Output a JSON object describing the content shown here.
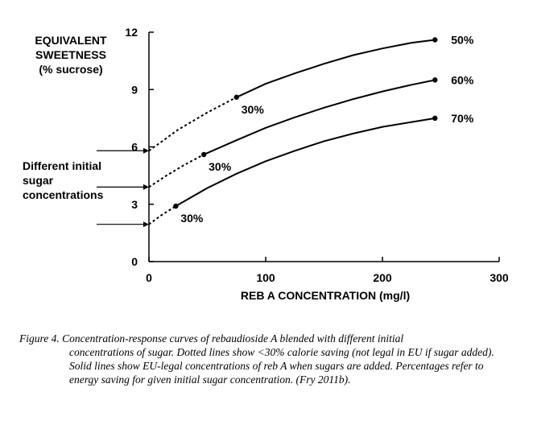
{
  "chart_data": {
    "type": "line",
    "ylabel_lines": [
      "EQUIVALENT",
      "SWEETNESS",
      "(% sucrose)"
    ],
    "xlabel": "REB A  CONCENTRATION (mg/l)",
    "xlim": [
      0,
      300
    ],
    "ylim": [
      0,
      12
    ],
    "x_ticks": [
      0,
      100,
      200,
      300
    ],
    "y_ticks": [
      0,
      3,
      6,
      9,
      12
    ],
    "grid": false,
    "left_annotation_lines": [
      "Different initial",
      "sugar",
      "concentrations"
    ],
    "series": [
      {
        "name": "50%",
        "initial_sugar": 5.8,
        "marker_30pct": {
          "x": 75,
          "y": 8.6,
          "label": "30%"
        },
        "end": {
          "x": 245,
          "y": 11.6
        },
        "dotted": [
          [
            0,
            5.8
          ],
          [
            25,
            6.9
          ],
          [
            50,
            7.8
          ],
          [
            75,
            8.6
          ]
        ],
        "solid": [
          [
            75,
            8.6
          ],
          [
            100,
            9.3
          ],
          [
            125,
            9.85
          ],
          [
            150,
            10.35
          ],
          [
            175,
            10.8
          ],
          [
            200,
            11.15
          ],
          [
            225,
            11.45
          ],
          [
            245,
            11.6
          ]
        ]
      },
      {
        "name": "60%",
        "initial_sugar": 3.9,
        "marker_30pct": {
          "x": 47,
          "y": 5.6,
          "label": "30%"
        },
        "end": {
          "x": 245,
          "y": 9.5
        },
        "dotted": [
          [
            0,
            3.9
          ],
          [
            15,
            4.5
          ],
          [
            30,
            5.05
          ],
          [
            47,
            5.6
          ]
        ],
        "solid": [
          [
            47,
            5.6
          ],
          [
            75,
            6.35
          ],
          [
            100,
            7.0
          ],
          [
            125,
            7.55
          ],
          [
            150,
            8.05
          ],
          [
            175,
            8.5
          ],
          [
            200,
            8.9
          ],
          [
            225,
            9.25
          ],
          [
            245,
            9.5
          ]
        ]
      },
      {
        "name": "70%",
        "initial_sugar": 1.95,
        "marker_30pct": {
          "x": 23,
          "y": 2.9,
          "label": "30%"
        },
        "end": {
          "x": 245,
          "y": 7.5
        },
        "dotted": [
          [
            0,
            1.95
          ],
          [
            10,
            2.4
          ],
          [
            23,
            2.9
          ]
        ],
        "solid": [
          [
            23,
            2.9
          ],
          [
            50,
            3.85
          ],
          [
            75,
            4.6
          ],
          [
            100,
            5.25
          ],
          [
            125,
            5.8
          ],
          [
            150,
            6.3
          ],
          [
            175,
            6.7
          ],
          [
            200,
            7.05
          ],
          [
            225,
            7.3
          ],
          [
            245,
            7.5
          ]
        ]
      }
    ]
  },
  "caption": {
    "first_line": "Figure 4. Concentration-response curves of rebaudioside A blended with different initial",
    "rest": "concentrations of sugar. Dotted lines show <30% calorie saving (not legal in EU if sugar added). Solid lines show EU-legal concentrations of reb A when sugars are added. Percentages refer to energy saving for given initial sugar concentration.  (Fry 2011b)."
  }
}
